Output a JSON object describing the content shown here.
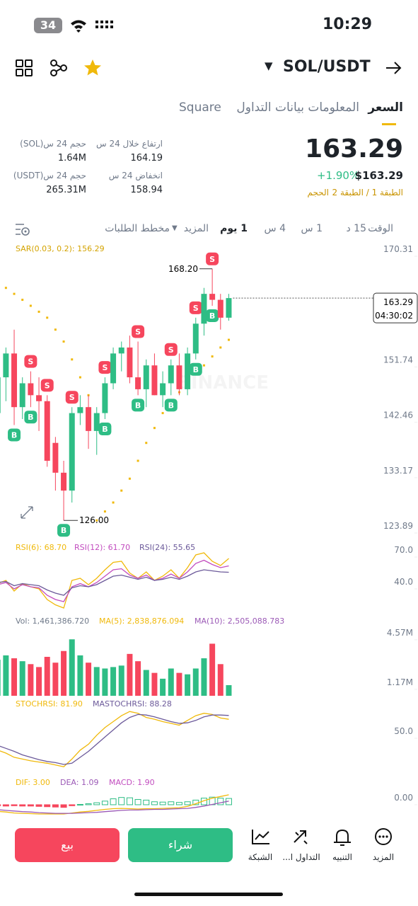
{
  "status_bar": {
    "time": "10:29",
    "battery": "34"
  },
  "header": {
    "pair": "SOL/USDT"
  },
  "tabs": [
    "السعر",
    "المعلومات",
    "بيانات التداول",
    "Square"
  ],
  "price": {
    "last": "163.29",
    "change": "+1.90%",
    "usd": "$163.29",
    "layers": "الطبقة 1 / الطبقة 2",
    "volume_tag": "الحجم"
  },
  "stats": [
    {
      "label": "ارتفاع خلال 24 س",
      "value": "164.19"
    },
    {
      "label": "حجم 24 س(SOL)",
      "value": "1.64M"
    },
    {
      "label": "انخفاض 24 س",
      "value": "158.94"
    },
    {
      "label": "حجم 24 س(USDT)",
      "value": "265.31M"
    }
  ],
  "toolbar": [
    "الوقت",
    "15 د",
    "1 س",
    "4 س",
    "1 يوم",
    "المزيد",
    "مخطط الطلبات"
  ],
  "chart_data": [
    {
      "type": "candlestick",
      "watermark": "BINANCE",
      "legend": "SAR(0.03, 0.2): 156.29",
      "up_color": "#2ebd85",
      "down_color": "#f6465d",
      "ylim": [
        123.89,
        170.31
      ],
      "yticks": [
        {
          "value": 123.89,
          "label": "123.89"
        },
        {
          "value": 133.17,
          "label": "133.17"
        },
        {
          "value": 142.46,
          "label": "142.46"
        },
        {
          "value": 151.74,
          "label": "151.74"
        },
        {
          "value": 170.31,
          "label": "170.31"
        }
      ],
      "open": [
        144,
        150,
        154,
        145,
        149,
        147,
        146,
        139,
        134,
        131,
        144,
        145,
        141,
        144,
        149,
        154,
        155,
        150,
        148,
        152,
        147,
        149,
        152,
        148,
        154,
        159,
        164,
        163,
        160
      ],
      "high": [
        151,
        155,
        158,
        150,
        151,
        150,
        147,
        140,
        136,
        145,
        147,
        147,
        145,
        150,
        155,
        156,
        157,
        156,
        153,
        154,
        151,
        153,
        154,
        155,
        160,
        165,
        168.2,
        164,
        164
      ],
      "low": [
        142,
        146,
        142,
        143,
        145,
        141,
        135,
        131,
        126,
        129,
        142,
        138,
        137,
        143,
        148,
        151,
        149,
        147,
        145,
        147,
        145,
        147,
        147,
        147,
        153,
        157,
        162,
        158,
        159.5
      ],
      "close": [
        150,
        154,
        145,
        149,
        147,
        146,
        136,
        134,
        131,
        144,
        145,
        141,
        144,
        149,
        154,
        155,
        150,
        148,
        152,
        147,
        149,
        152,
        148,
        154,
        159,
        164,
        163,
        160,
        163.29
      ],
      "sar": {
        "color": "#f0b90b",
        "values": [
          166,
          165,
          164,
          163,
          162,
          161,
          160,
          158,
          156,
          153,
          150,
          147,
          126,
          127.5,
          129,
          131,
          133,
          136,
          139,
          141.5,
          144,
          146,
          147.5,
          149,
          150.5,
          152,
          153.5,
          155,
          156.29
        ]
      },
      "signals_high": [
        null,
        null,
        null,
        null,
        "S",
        null,
        "S",
        null,
        null,
        "S",
        null,
        null,
        null,
        "S",
        null,
        null,
        null,
        "S",
        null,
        null,
        null,
        "S",
        null,
        null,
        "S",
        null,
        "S",
        null,
        null
      ],
      "signals_low": [
        null,
        null,
        "B",
        null,
        "B",
        null,
        null,
        null,
        "B",
        null,
        null,
        null,
        null,
        "B",
        null,
        null,
        null,
        "B",
        null,
        null,
        null,
        "B",
        null,
        null,
        "B",
        null,
        "B",
        null,
        null
      ],
      "high_label": {
        "value": 168.2,
        "label": "168.20"
      },
      "low_label": {
        "value": 126,
        "label": "126.00"
      },
      "last_price": {
        "value": 163.29,
        "label": "163.29"
      },
      "countdown": "04:30:02"
    },
    {
      "type": "line",
      "ylim": [
        21,
        75
      ],
      "yticks": [
        {
          "value": 40,
          "label": "40.0"
        },
        {
          "value": 70,
          "label": "70.0"
        }
      ],
      "series": [
        {
          "name": "RSI(6): 68.70",
          "color": "#f0b90b",
          "values": [
            45,
            48,
            38,
            45,
            42,
            40,
            30,
            25,
            22,
            48,
            50,
            44,
            50,
            58,
            65,
            66,
            55,
            50,
            56,
            48,
            52,
            58,
            50,
            60,
            72,
            74,
            66,
            62,
            68.7
          ]
        },
        {
          "name": "RSI(12): 61.70",
          "color": "#c24dbf",
          "values": [
            44,
            46,
            40,
            44,
            42,
            41,
            34,
            30,
            28,
            42,
            45,
            42,
            46,
            52,
            58,
            59,
            53,
            50,
            53,
            48,
            50,
            54,
            50,
            56,
            64,
            67,
            63,
            60,
            61.7
          ]
        },
        {
          "name": "RSI(24): 55.65",
          "color": "#6c5a9a",
          "values": [
            46,
            47,
            43,
            45,
            44,
            43,
            39,
            36,
            34,
            41,
            43,
            42,
            44,
            48,
            52,
            53,
            51,
            49,
            51,
            48,
            49,
            51,
            49,
            52,
            56,
            58,
            57,
            56,
            55.65
          ]
        }
      ]
    },
    {
      "type": "bar",
      "name": "Vol: 1,461,386.720",
      "ylim": [
        0.73,
        5.0
      ],
      "yticks": [
        {
          "value": 1.17,
          "label": "1.17M"
        },
        {
          "value": 4.57,
          "label": "4.57M"
        }
      ],
      "values": [
        3.2,
        3.5,
        3.3,
        3.1,
        2.9,
        2.7,
        3.4,
        3.0,
        3.8,
        4.6,
        3.5,
        3.0,
        2.7,
        2.6,
        2.7,
        2.8,
        3.6,
        3.1,
        2.5,
        2.3,
        1.9,
        2.6,
        2.3,
        2.2,
        2.6,
        3.3,
        4.3,
        2.9,
        1.46
      ],
      "legends": [
        {
          "name": "MA(5): 2,838,876.094",
          "color": "#f0b90b"
        },
        {
          "name": "MA(10): 2,505,088.783",
          "color": "#9b59b6"
        }
      ]
    },
    {
      "type": "line",
      "ylim": [
        0,
        100
      ],
      "yticks": [
        {
          "value": 50,
          "label": "50.0"
        }
      ],
      "series": [
        {
          "name": "STOCHRSI: 81.90",
          "color": "#f0b90b",
          "values": [
            30,
            25,
            18,
            15,
            12,
            10,
            8,
            5,
            2,
            15,
            30,
            40,
            55,
            68,
            78,
            88,
            95,
            92,
            85,
            82,
            78,
            75,
            72,
            80,
            88,
            92,
            90,
            84,
            81.9
          ]
        },
        {
          "name": "MASTOCHRSI: 88.28",
          "color": "#6c5a9a",
          "values": [
            38,
            33,
            28,
            22,
            18,
            14,
            11,
            9,
            6,
            8,
            18,
            28,
            40,
            52,
            64,
            76,
            85,
            90,
            89,
            86,
            82,
            78,
            75,
            76,
            80,
            86,
            89,
            89,
            88.28
          ]
        }
      ]
    },
    {
      "type": "bar",
      "name": "MACD: 1.90",
      "positive_color": "#2ebd85",
      "negative_color": "#f6465d",
      "ylim": [
        -2.8,
        4.7
      ],
      "yticks": [
        {
          "value": 0,
          "label": "0.00"
        }
      ],
      "values": [
        -0.3,
        -0.4,
        -0.3,
        -0.4,
        -0.4,
        -0.5,
        -0.6,
        -0.7,
        -0.8,
        -0.3,
        0.1,
        0.3,
        0.6,
        1.1,
        1.8,
        2.2,
        2.1,
        1.6,
        1.4,
        0.9,
        0.8,
        0.9,
        0.7,
        0.9,
        1.4,
        2.0,
        2.3,
        2.0,
        1.9
      ],
      "series": [
        {
          "name": "DIF: 3.00",
          "color": "#f0b90b",
          "values": [
            -2,
            -2.2,
            -2.5,
            -2.6,
            -2.7,
            -2.8,
            -2.8,
            -2.8,
            -2.8,
            -2.5,
            -2.2,
            -2,
            -1.7,
            -1.4,
            -1.2,
            -1.1,
            -1.2,
            -1.3,
            -1.2,
            -1.2,
            -1.1,
            -1,
            -0.9,
            -0.5,
            0.3,
            1.2,
            2,
            2.5,
            3.0
          ]
        },
        {
          "name": "DEA: 1.09",
          "color": "#9b59b6",
          "values": [
            -1.5,
            -1.7,
            -1.9,
            -2.1,
            -2.2,
            -2.4,
            -2.5,
            -2.6,
            -2.6,
            -2.6,
            -2.5,
            -2.4,
            -2.3,
            -2.1,
            -1.9,
            -1.7,
            -1.6,
            -1.6,
            -1.5,
            -1.4,
            -1.4,
            -1.3,
            -1.2,
            -1.1,
            -0.8,
            -0.4,
            0.1,
            0.6,
            1.09
          ]
        }
      ]
    }
  ],
  "actions": {
    "sell": "بيع",
    "buy": "شراء"
  },
  "nav": [
    "الشبكة",
    "التداول ا...",
    "التنبيه",
    "المزيد"
  ]
}
